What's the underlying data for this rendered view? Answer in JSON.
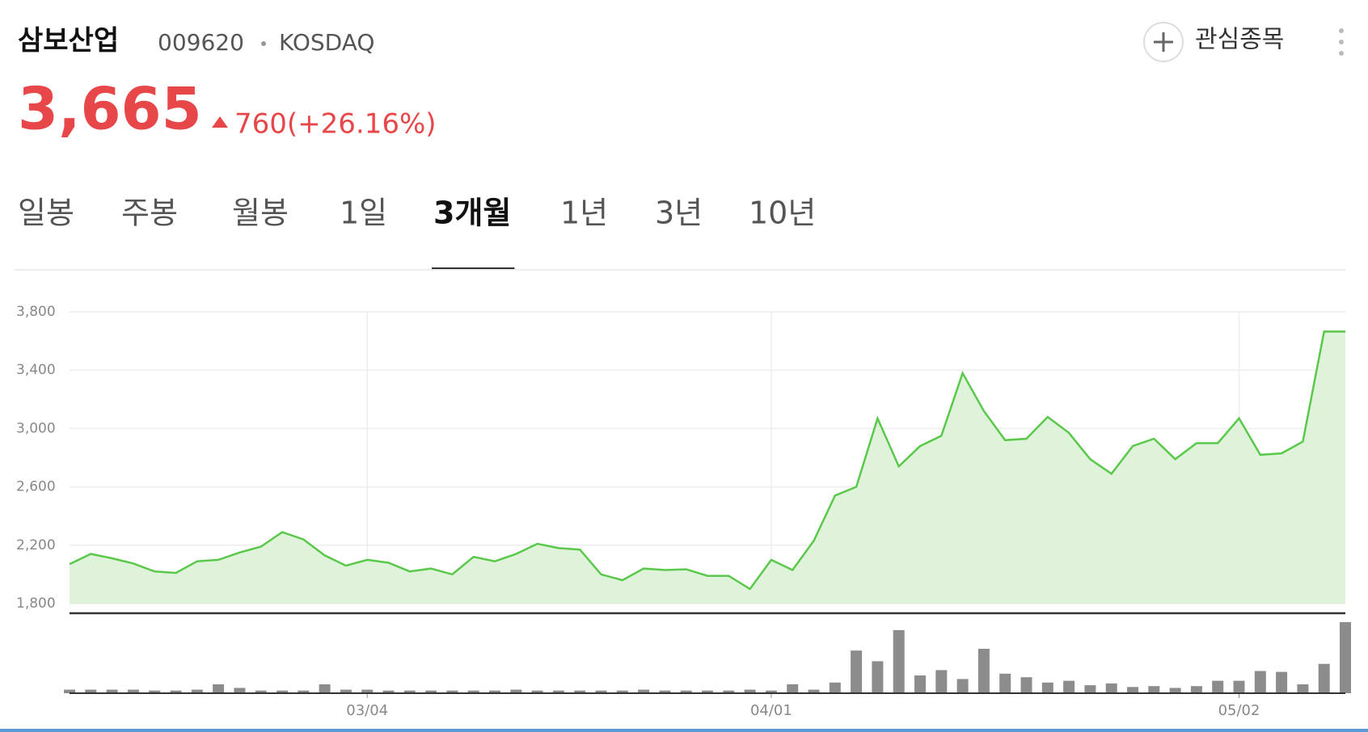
{
  "header": {
    "name": "삼보산업",
    "code": "009620",
    "market": "KOSDAQ",
    "price": "3,665",
    "change": "760(+26.16%)",
    "watch": "관심종목"
  },
  "tabs": {
    "items": [
      "일봉",
      "주봉",
      "월봉",
      "1일",
      "3개월",
      "1년",
      "3년",
      "10년"
    ],
    "selected": 4
  },
  "chart_data": {
    "type": "line",
    "categories": [
      null,
      null,
      null,
      null,
      null,
      null,
      null,
      null,
      null,
      null,
      null,
      null,
      null,
      null,
      "03/04",
      null,
      null,
      null,
      null,
      null,
      null,
      null,
      null,
      null,
      null,
      null,
      null,
      null,
      null,
      null,
      null,
      null,
      null,
      "04/01",
      null,
      null,
      null,
      null,
      null,
      null,
      null,
      null,
      null,
      null,
      null,
      null,
      null,
      null,
      null,
      null,
      null,
      null,
      null,
      null,
      null,
      "05/02",
      null,
      null,
      null,
      null,
      null
    ],
    "values": [
      2070,
      2140,
      2110,
      2075,
      2020,
      2010,
      2090,
      2100,
      2150,
      2190,
      2290,
      2240,
      2130,
      2060,
      2100,
      2080,
      2020,
      2040,
      2000,
      2120,
      2090,
      2140,
      2210,
      2180,
      2170,
      2000,
      1960,
      2040,
      2030,
      2035,
      1990,
      1990,
      1900,
      2100,
      2030,
      2230,
      2540,
      2600,
      3070,
      2740,
      2880,
      2950,
      3380,
      3120,
      2920,
      2930,
      3080,
      2970,
      2790,
      2690,
      2880,
      2930,
      2790,
      2900,
      2900,
      3070,
      2820,
      2830,
      2910,
      3665,
      3665
    ],
    "volume": [
      4,
      4,
      4,
      4,
      3,
      3,
      4,
      10,
      6,
      3,
      3,
      3,
      10,
      4,
      4,
      3,
      3,
      3,
      3,
      3,
      3,
      4,
      3,
      3,
      3,
      3,
      3,
      4,
      3,
      3,
      3,
      3,
      4,
      3,
      10,
      4,
      12,
      48,
      36,
      71,
      20,
      26,
      16,
      50,
      22,
      18,
      12,
      14,
      9,
      11,
      7,
      8,
      6,
      8,
      14,
      14,
      25,
      24,
      10,
      33,
      80
    ],
    "color": "#5ac84a",
    "area_color": "#dff3da",
    "volume_color": "#8c8c8c",
    "ylim": [
      1800,
      3800
    ],
    "yticks": [
      {
        "value": 1800,
        "label": "1,800"
      },
      {
        "value": 2200,
        "label": "2,200"
      },
      {
        "value": 2600,
        "label": "2,600"
      },
      {
        "value": 3000,
        "label": "3,000"
      },
      {
        "value": 3400,
        "label": "3,400"
      },
      {
        "value": 3800,
        "label": "3,800"
      }
    ],
    "grid": true
  }
}
